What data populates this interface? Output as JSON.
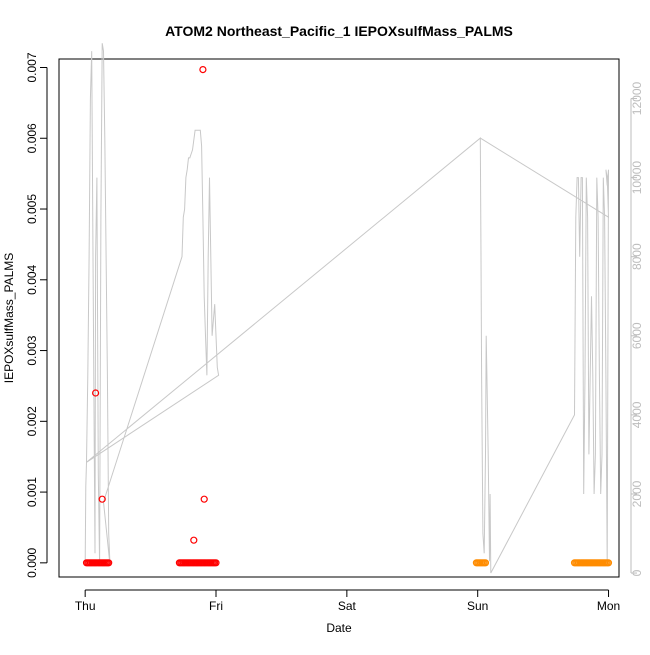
{
  "chart_data": {
    "type": "scatter",
    "title": "ATOM2 Northeast_Pacific_1 IEPOXsulfMass_PALMS",
    "xlabel": "Date",
    "ylabel": "IEPOXsulfMass_PALMS",
    "x_tick_labels": [
      "Thu",
      "Fri",
      "Sat",
      "Sun",
      "Mon"
    ],
    "xlim": [
      -0.2,
      4.08
    ],
    "ylim": [
      -0.0002,
      0.00712
    ],
    "y_ticks": [
      0.0,
      0.001,
      0.002,
      0.003,
      0.004,
      0.005,
      0.006,
      0.007
    ],
    "y_tick_labels": [
      "0.000",
      "0.001",
      "0.002",
      "0.003",
      "0.004",
      "0.005",
      "0.006",
      "0.007"
    ],
    "y2lim": [
      -100,
      13000
    ],
    "y2_ticks": [
      0,
      2000,
      4000,
      6000,
      8000,
      10000,
      12000
    ],
    "y2_tick_labels": [
      "0",
      "2000",
      "4000",
      "6000",
      "8000",
      "10000",
      "12000"
    ],
    "grid": false,
    "colors": {
      "points_early": "#ff0000",
      "points_late": "#ff8c00",
      "altitude_line": "#c8c8c8"
    },
    "series": [
      {
        "kind": "points",
        "color": "#ff0000",
        "x": [
          0.01,
          0.02,
          0.03,
          0.04,
          0.05,
          0.06,
          0.07,
          0.08,
          0.09,
          0.1,
          0.11,
          0.12,
          0.13,
          0.14,
          0.15,
          0.16,
          0.17,
          0.18,
          0.08,
          0.13,
          0.72,
          0.73,
          0.74,
          0.75,
          0.76,
          0.77,
          0.78,
          0.79,
          0.8,
          0.81,
          0.82,
          0.83,
          0.84,
          0.85,
          0.86,
          0.87,
          0.88,
          0.89,
          0.9,
          0.91,
          0.92,
          0.93,
          0.94,
          0.95,
          0.96,
          0.97,
          0.98,
          0.99,
          1.0,
          0.83,
          0.9,
          0.91
        ],
        "y": [
          0,
          0,
          0,
          0,
          0,
          0,
          0,
          0,
          0,
          0,
          0,
          0,
          0,
          0,
          0,
          0,
          0,
          0,
          0.0024,
          0.0009,
          0,
          0,
          0,
          0,
          0,
          0,
          0,
          0,
          0,
          0,
          0,
          0,
          0,
          0,
          0,
          0,
          0,
          0,
          0,
          0,
          0,
          0,
          0,
          0,
          0,
          0,
          0,
          0,
          0,
          0.00032,
          0.00697,
          0.0009
        ]
      },
      {
        "kind": "points",
        "color": "#ff8c00",
        "x": [
          2.99,
          3.0,
          3.01,
          3.02,
          3.03,
          3.04,
          3.05,
          3.06,
          3.74,
          3.75,
          3.76,
          3.77,
          3.78,
          3.79,
          3.8,
          3.81,
          3.82,
          3.83,
          3.84,
          3.85,
          3.86,
          3.87,
          3.88,
          3.89,
          3.9,
          3.91,
          3.92,
          3.93,
          3.94,
          3.95,
          3.96,
          3.97,
          3.98,
          3.99,
          4.0
        ],
        "y": [
          0,
          0,
          0,
          0,
          0,
          0,
          0,
          0,
          0,
          0,
          0,
          0,
          0,
          0,
          0,
          0,
          0,
          0,
          0,
          0,
          0,
          0,
          0,
          0,
          0,
          0,
          0,
          0,
          0,
          0,
          0,
          0,
          0,
          0,
          0
        ]
      },
      {
        "kind": "line",
        "axis": "right",
        "color": "#c8c8c8",
        "x": [
          0.0,
          0.005,
          0.01,
          0.02,
          0.03,
          0.04,
          0.05,
          0.06,
          0.07,
          0.075,
          0.08,
          0.09,
          0.1,
          0.11,
          0.12,
          0.13,
          0.14,
          0.15,
          0.16,
          0.17,
          0.18,
          0.19,
          0.14,
          0.74,
          0.75,
          0.76,
          0.77,
          0.78,
          0.79,
          0.8,
          0.82,
          0.84,
          0.86,
          0.88,
          0.89,
          0.9,
          0.91,
          0.92,
          0.93,
          0.94,
          0.95,
          0.96,
          0.97,
          0.98,
          0.99,
          1.0,
          1.01,
          1.02,
          0.01,
          3.02,
          3.025,
          3.03,
          3.04,
          3.05,
          3.06,
          3.065,
          3.07,
          3.08,
          3.09,
          3.095,
          3.1,
          3.74,
          3.75,
          3.76,
          3.77,
          3.78,
          3.79,
          3.8,
          3.81,
          3.82,
          3.83,
          3.84,
          3.85,
          3.86,
          3.87,
          3.88,
          3.89,
          3.9,
          3.91,
          3.92,
          3.93,
          3.94,
          3.95,
          3.96,
          3.97,
          3.98,
          3.99,
          4.0,
          3.99,
          3.98,
          3.99,
          4.0,
          3.02
        ],
        "y": [
          300,
          2200,
          2800,
          5000,
          8000,
          12000,
          13200,
          8000,
          3000,
          500,
          8000,
          10000,
          2500,
          200,
          9000,
          13400,
          13200,
          11000,
          8000,
          5000,
          1000,
          200,
          1800,
          8000,
          9000,
          9200,
          10000,
          10200,
          10500,
          10500,
          10700,
          11200,
          11200,
          11200,
          10800,
          9000,
          7000,
          6000,
          5000,
          8000,
          10000,
          8000,
          6000,
          6400,
          6800,
          6000,
          5200,
          5000,
          2800,
          11000,
          8000,
          5000,
          1000,
          500,
          3000,
          6000,
          5000,
          3000,
          300,
          2000,
          0,
          4000,
          9000,
          10000,
          10000,
          8000,
          10000,
          10000,
          2000,
          5000,
          10000,
          9000,
          3000,
          5000,
          7000,
          5000,
          2000,
          3000,
          10000,
          9000,
          5000,
          2000,
          3000,
          10000,
          9000,
          5000,
          200,
          10200,
          9800,
          10200,
          10000,
          9000,
          11000
        ]
      }
    ]
  }
}
